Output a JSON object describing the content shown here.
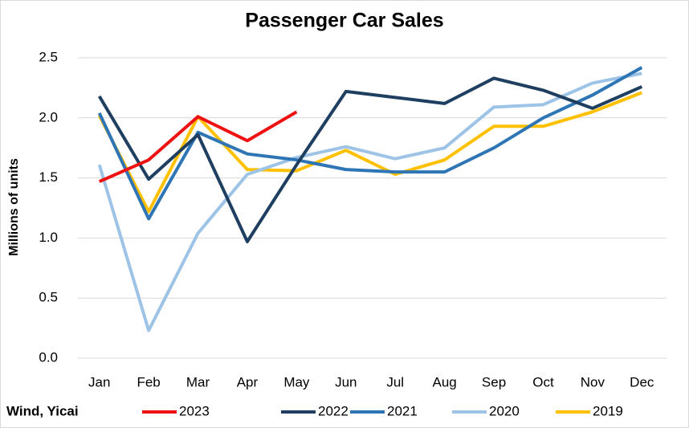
{
  "chart_data": {
    "type": "line",
    "title": "Passenger Car Sales",
    "ylabel": "Millions of units",
    "source": "Wind, Yicai",
    "categories": [
      "Jan",
      "Feb",
      "Mar",
      "Apr",
      "May",
      "Jun",
      "Jul",
      "Aug",
      "Sep",
      "Oct",
      "Nov",
      "Dec"
    ],
    "series": [
      {
        "name": "2023",
        "color": "#ee1111",
        "values": [
          1.47,
          1.65,
          2.01,
          1.81,
          2.05,
          null,
          null,
          null,
          null,
          null,
          null,
          null
        ]
      },
      {
        "name": "2022",
        "color": "#1f3f60",
        "values": [
          2.18,
          1.49,
          1.86,
          0.97,
          1.61,
          2.22,
          2.17,
          2.12,
          2.33,
          2.23,
          2.08,
          2.26
        ]
      },
      {
        "name": "2021",
        "color": "#2e75b6",
        "values": [
          2.04,
          1.16,
          1.88,
          1.7,
          1.65,
          1.57,
          1.55,
          1.55,
          1.75,
          2.0,
          2.19,
          2.42
        ]
      },
      {
        "name": "2020",
        "color": "#9dc3e6",
        "values": [
          1.61,
          0.23,
          1.04,
          1.53,
          1.67,
          1.76,
          1.66,
          1.75,
          2.09,
          2.11,
          2.29,
          2.37
        ]
      },
      {
        "name": "2019",
        "color": "#ffc000",
        "values": [
          2.02,
          1.22,
          2.01,
          1.57,
          1.56,
          1.73,
          1.53,
          1.65,
          1.93,
          1.93,
          2.05,
          2.21
        ]
      }
    ],
    "ylim": [
      0,
      2.5
    ],
    "yticks": [
      {
        "value": 0,
        "label": "0.0"
      },
      0.5,
      {
        "value": 1,
        "label": "1.0"
      },
      1.5,
      {
        "value": 2,
        "label": "2.0"
      },
      2.5
    ],
    "grid": true,
    "legend": "bottom"
  }
}
